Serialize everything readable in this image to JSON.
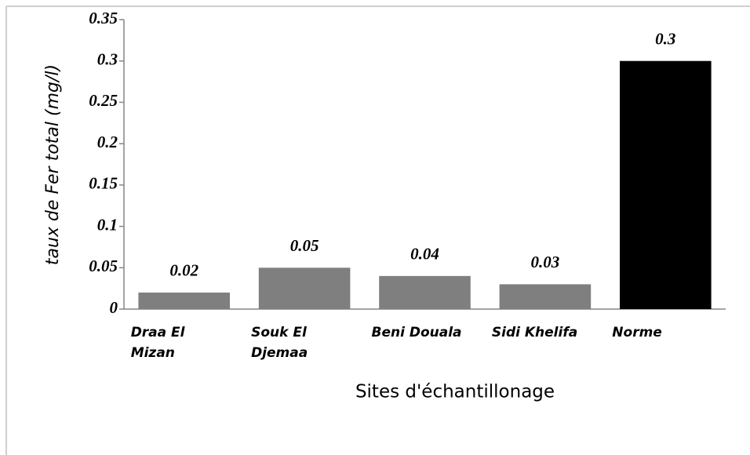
{
  "chart_data": {
    "type": "bar",
    "y_label": "taux de Fer  total (mg/l)",
    "x_label": "Sites d'échantillonage",
    "categories": [
      "Draa El Mizan",
      "Souk El Djemaa",
      "Beni Douala",
      "Sidi Khelifa",
      "Norme"
    ],
    "values": [
      0.02,
      0.05,
      0.04,
      0.03,
      0.3
    ],
    "colors": [
      "#7f7f7f",
      "#7f7f7f",
      "#7f7f7f",
      "#7f7f7f",
      "#000000"
    ],
    "ylim": [
      0,
      0.35
    ],
    "yticks": [
      0,
      0.05,
      0.1,
      0.15,
      0.2,
      0.25,
      0.3,
      0.35
    ],
    "grid": false
  }
}
